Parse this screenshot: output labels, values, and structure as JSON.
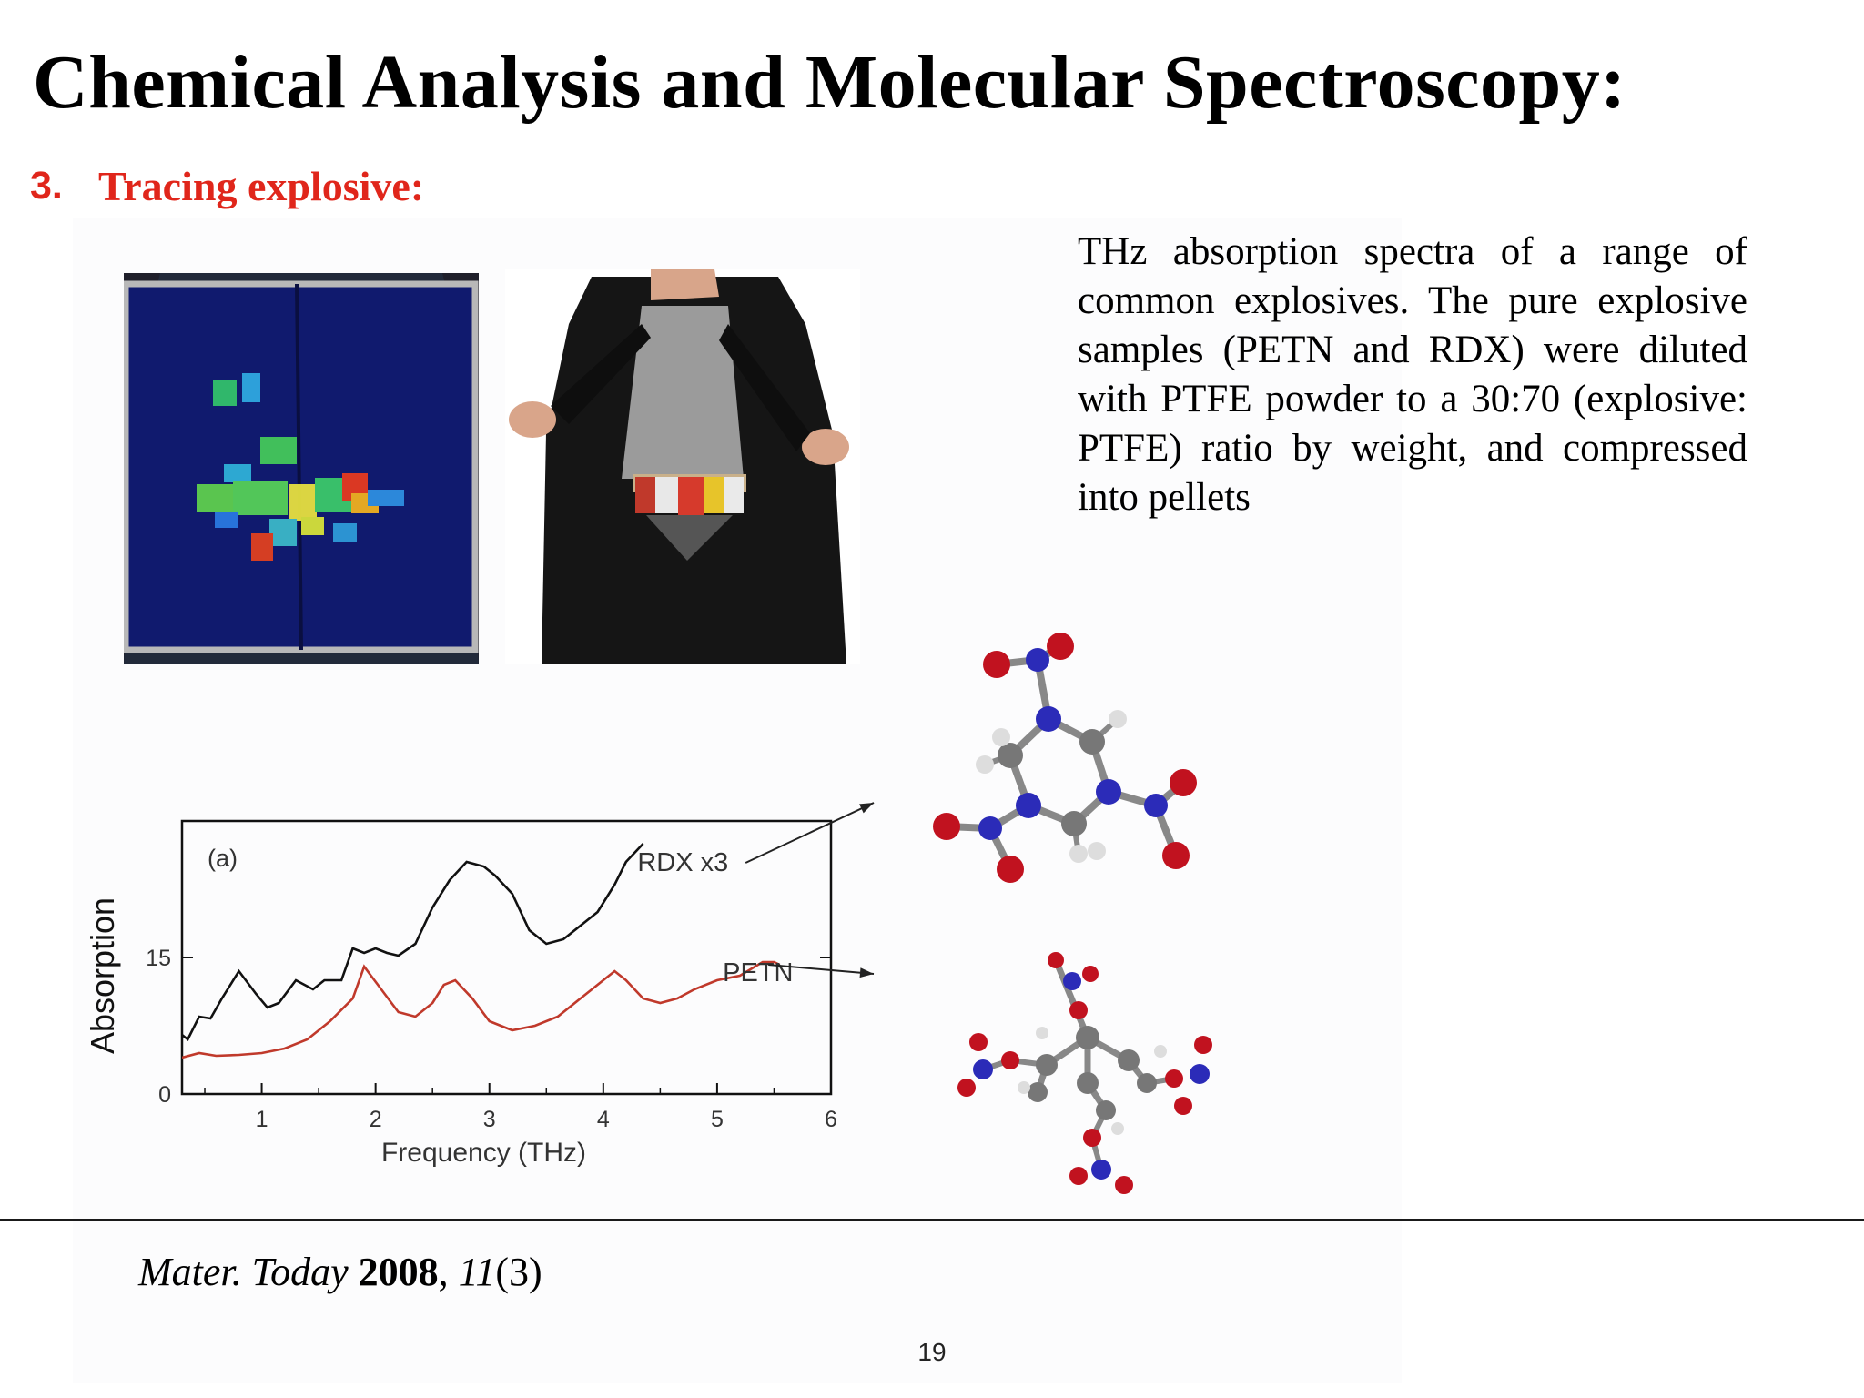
{
  "slide": {
    "title": "Chemical Analysis and Molecular Spectroscopy:",
    "section_number": "3.",
    "section_title": "Tracing explosive:",
    "description": "THz absorption spectra of a range of common explosives. The pure explosive samples (PETN and RDX) were diluted with PTFE powder to a 30:70 (explosive: PTFE) ratio by weight, and compressed into pellets",
    "citation": {
      "journal": "Mater. Today",
      "year": "2008",
      "volume": "11",
      "issue": "(3)"
    },
    "page_number": "19"
  },
  "chart_data": {
    "type": "line",
    "panel_label": "(a)",
    "xlabel": "Frequency (THz)",
    "ylabel": "Absorption",
    "xlim": [
      0.3,
      6
    ],
    "ylim": [
      0,
      30
    ],
    "xticks": [
      "1",
      "2",
      "3",
      "4",
      "5",
      "6"
    ],
    "yticks": [
      "0",
      "15"
    ],
    "series": [
      {
        "name": "RDX x3",
        "color": "#111111",
        "x": [
          0.3,
          0.35,
          0.45,
          0.55,
          0.65,
          0.8,
          0.95,
          1.05,
          1.15,
          1.3,
          1.45,
          1.55,
          1.7,
          1.8,
          1.9,
          2.0,
          2.1,
          2.2,
          2.35,
          2.5,
          2.65,
          2.8,
          2.95,
          3.05,
          3.2,
          3.35,
          3.5,
          3.65,
          3.8,
          3.95,
          4.1,
          4.2,
          4.35
        ],
        "y": [
          6.5,
          6.0,
          8.5,
          8.3,
          10.5,
          13.5,
          11.0,
          9.5,
          10.0,
          12.5,
          11.5,
          12.5,
          12.5,
          16.0,
          15.5,
          16.0,
          15.5,
          15.2,
          16.5,
          20.5,
          23.5,
          25.5,
          25.0,
          24.0,
          22.0,
          18.0,
          16.5,
          17.0,
          18.5,
          20.0,
          23.0,
          25.5,
          27.5
        ]
      },
      {
        "name": "PETN",
        "color": "#c0392b",
        "x": [
          0.3,
          0.45,
          0.6,
          0.8,
          1.0,
          1.2,
          1.4,
          1.6,
          1.8,
          1.9,
          2.05,
          2.2,
          2.35,
          2.5,
          2.6,
          2.7,
          2.85,
          3.0,
          3.2,
          3.4,
          3.6,
          3.8,
          4.0,
          4.1,
          4.2,
          4.35,
          4.5,
          4.65,
          4.8,
          5.0,
          5.2,
          5.4,
          5.5,
          5.55
        ],
        "y": [
          4.0,
          4.5,
          4.2,
          4.3,
          4.5,
          5.0,
          6.0,
          8.0,
          10.5,
          14.0,
          11.5,
          9.0,
          8.5,
          10.0,
          12.0,
          12.5,
          10.5,
          8.0,
          7.0,
          7.5,
          8.5,
          10.5,
          12.5,
          13.5,
          12.5,
          10.5,
          10.0,
          10.5,
          11.5,
          12.5,
          13.0,
          14.5,
          14.5,
          14.2
        ]
      }
    ]
  }
}
